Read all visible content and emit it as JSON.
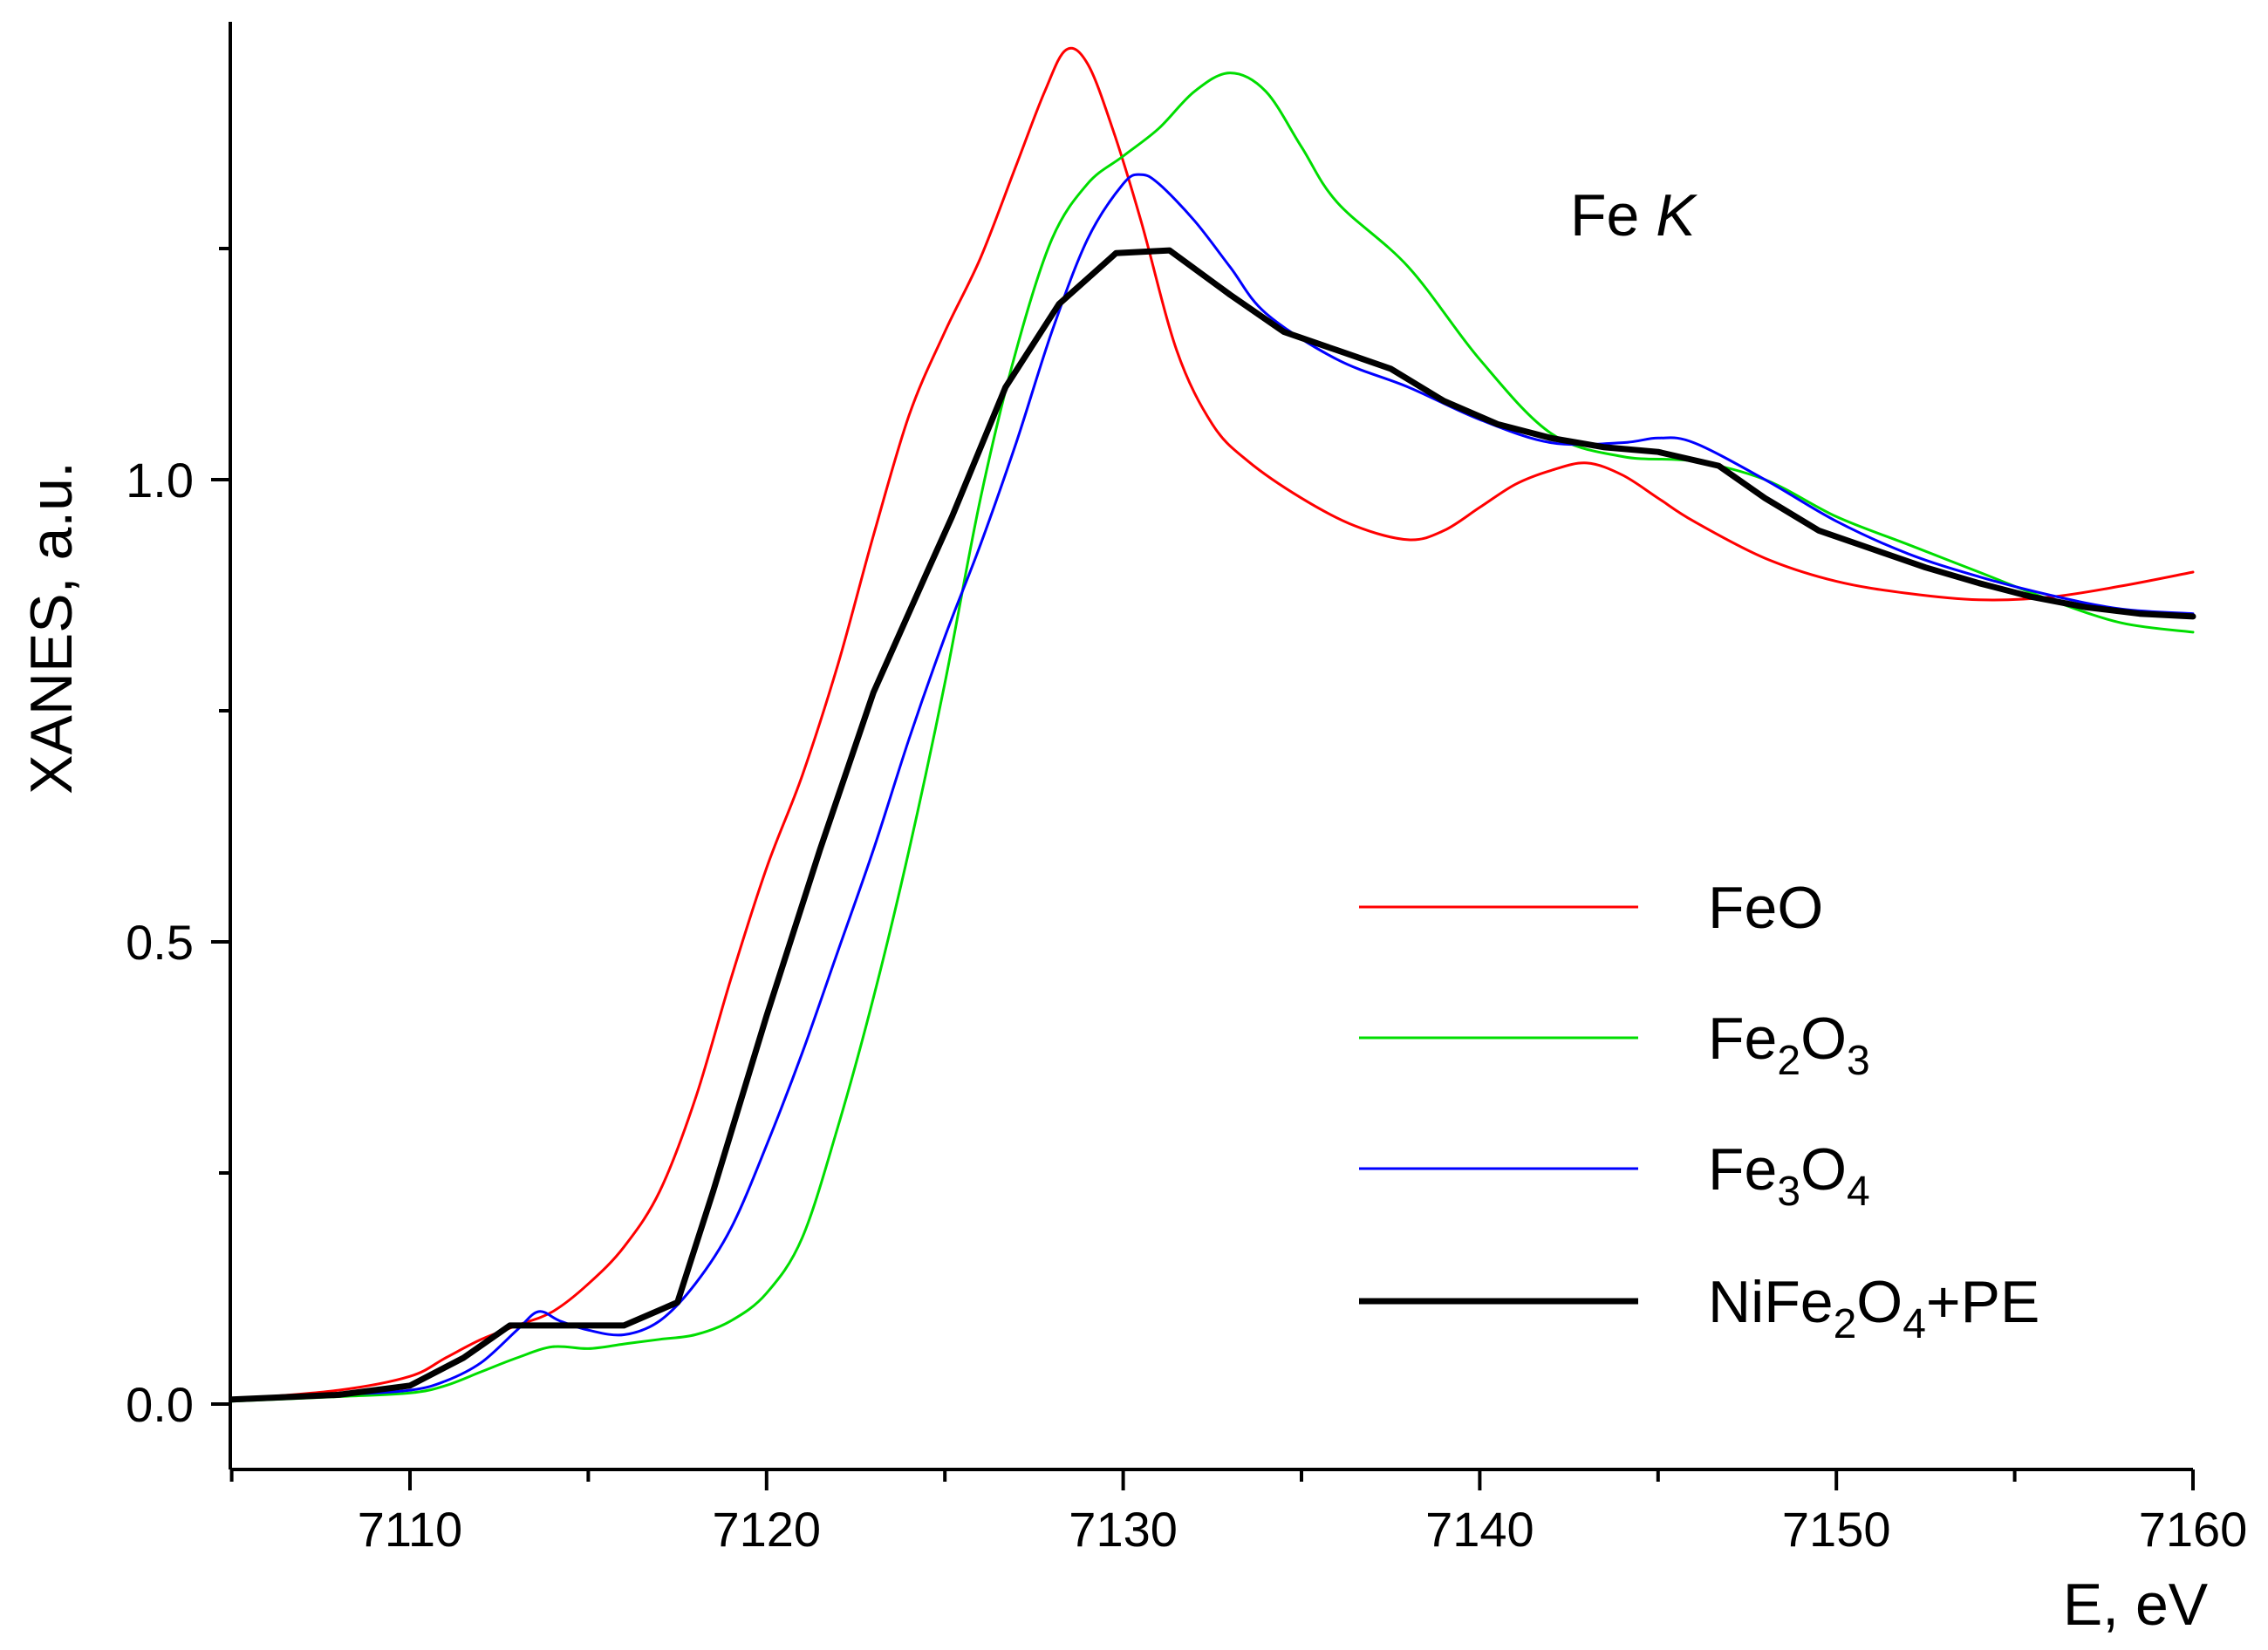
{
  "chart_data": {
    "type": "line",
    "title": "",
    "annotation": {
      "main": "Fe ",
      "italic": "K"
    },
    "xlabel": "E, eV",
    "ylabel": "XANES, a.u.",
    "xlim": [
      7105,
      7160
    ],
    "ylim": [
      -0.06,
      1.5
    ],
    "xticks": [
      7110,
      7120,
      7130,
      7140,
      7150,
      7160
    ],
    "xtick_labels": [
      "7110",
      "7120",
      "7130",
      "7140",
      "7150",
      "7160"
    ],
    "xminor": [
      7105,
      7115,
      7125,
      7135,
      7145,
      7155
    ],
    "yticks": [
      0.0,
      0.5,
      1.0
    ],
    "ytick_labels": [
      "0.0",
      "0.5",
      "1.0"
    ],
    "yminor": [
      0.25,
      0.75,
      1.25
    ],
    "grid": false,
    "legend_position": "center-right",
    "series": [
      {
        "name": "FeO",
        "legend": [
          {
            "t": "FeO"
          }
        ],
        "color": "#ff0000",
        "width": 3,
        "x": [
          7105,
          7108,
          7110,
          7111,
          7112,
          7113,
          7114,
          7115,
          7116,
          7117,
          7118,
          7119,
          7120,
          7121,
          7122,
          7123,
          7124,
          7125,
          7126,
          7127,
          7127.8,
          7128.4,
          7129,
          7129.7,
          7130.5,
          7131.5,
          7132.5,
          7133.5,
          7135,
          7136.5,
          7138,
          7139,
          7140,
          7141,
          7142,
          7143,
          7144,
          7145,
          7146,
          7148,
          7150,
          7152,
          7154,
          7156,
          7158,
          7160
        ],
        "y": [
          0.005,
          0.015,
          0.03,
          0.05,
          0.07,
          0.085,
          0.1,
          0.13,
          0.17,
          0.23,
          0.33,
          0.46,
          0.58,
          0.68,
          0.8,
          0.94,
          1.07,
          1.16,
          1.24,
          1.34,
          1.42,
          1.465,
          1.45,
          1.38,
          1.28,
          1.14,
          1.06,
          1.02,
          0.98,
          0.95,
          0.935,
          0.945,
          0.97,
          0.995,
          1.01,
          1.018,
          1.005,
          0.98,
          0.955,
          0.915,
          0.89,
          0.877,
          0.87,
          0.873,
          0.885,
          0.9
        ]
      },
      {
        "name": "Fe2O3",
        "legend": [
          {
            "t": "Fe"
          },
          {
            "t": "2",
            "sub": true
          },
          {
            "t": "O"
          },
          {
            "t": "3",
            "sub": true
          }
        ],
        "color": "#00dd00",
        "width": 3,
        "x": [
          7105,
          7108,
          7110,
          7111,
          7112,
          7113,
          7114,
          7115,
          7116,
          7117,
          7118,
          7119,
          7120,
          7121,
          7122,
          7123,
          7124,
          7125,
          7126,
          7127,
          7128,
          7129,
          7130,
          7131,
          7132,
          7133,
          7134,
          7135,
          7136,
          7138,
          7140,
          7142,
          7144,
          7146,
          7148,
          7150,
          7152,
          7154,
          7156,
          7158,
          7160
        ],
        "y": [
          0.003,
          0.008,
          0.012,
          0.02,
          0.035,
          0.05,
          0.062,
          0.06,
          0.065,
          0.07,
          0.075,
          0.09,
          0.12,
          0.18,
          0.3,
          0.44,
          0.6,
          0.78,
          0.98,
          1.14,
          1.26,
          1.32,
          1.35,
          1.38,
          1.42,
          1.44,
          1.42,
          1.36,
          1.3,
          1.23,
          1.13,
          1.05,
          1.025,
          1.02,
          1.0,
          0.96,
          0.93,
          0.9,
          0.87,
          0.845,
          0.835
        ]
      },
      {
        "name": "Fe3O4",
        "legend": [
          {
            "t": "Fe"
          },
          {
            "t": "3",
            "sub": true
          },
          {
            "t": "O"
          },
          {
            "t": "4",
            "sub": true
          }
        ],
        "color": "#0000ff",
        "width": 3,
        "x": [
          7105,
          7108,
          7110,
          7111,
          7112,
          7113,
          7113.6,
          7114.2,
          7115,
          7116,
          7117,
          7118,
          7119,
          7120,
          7121,
          7122,
          7123,
          7124,
          7125,
          7126,
          7127,
          7128,
          7129,
          7130,
          7130.5,
          7131,
          7132,
          7133,
          7134,
          7136,
          7138,
          7140,
          7142,
          7144,
          7145,
          7146,
          7148,
          7150,
          7152,
          7154,
          7156,
          7158,
          7160
        ],
        "y": [
          0.005,
          0.01,
          0.015,
          0.025,
          0.045,
          0.08,
          0.1,
          0.09,
          0.08,
          0.075,
          0.09,
          0.13,
          0.19,
          0.28,
          0.38,
          0.49,
          0.6,
          0.72,
          0.83,
          0.93,
          1.04,
          1.16,
          1.26,
          1.32,
          1.33,
          1.32,
          1.28,
          1.23,
          1.18,
          1.13,
          1.1,
          1.065,
          1.04,
          1.04,
          1.045,
          1.04,
          1.0,
          0.955,
          0.92,
          0.895,
          0.875,
          0.86,
          0.855
        ]
      },
      {
        "name": "NiFe2O4+PE",
        "legend": [
          {
            "t": "NiFe"
          },
          {
            "t": "2",
            "sub": true
          },
          {
            "t": "O"
          },
          {
            "t": "4",
            "sub": true
          },
          {
            "t": "+PE"
          }
        ],
        "color": "#000000",
        "width": 7,
        "x": [
          7105,
          7108,
          7110,
          7111.5,
          7112.8,
          7114,
          7115,
          7116,
          7117.5,
          7118.5,
          7120,
          7121.5,
          7123,
          7124.5,
          7125.2,
          7126.7,
          7128.2,
          7129.8,
          7131.3,
          7133,
          7134.5,
          7136,
          7137.5,
          7139,
          7140.5,
          7142,
          7143.5,
          7145,
          7146.7,
          7148,
          7149.5,
          7151,
          7152.5,
          7154,
          7155.5,
          7157,
          7158.5,
          7160
        ],
        "y": [
          0.005,
          0.01,
          0.02,
          0.05,
          0.085,
          0.085,
          0.085,
          0.085,
          0.11,
          0.23,
          0.42,
          0.6,
          0.77,
          0.9,
          0.96,
          1.1,
          1.19,
          1.245,
          1.248,
          1.2,
          1.16,
          1.14,
          1.12,
          1.085,
          1.06,
          1.045,
          1.035,
          1.03,
          1.015,
          0.98,
          0.945,
          0.925,
          0.905,
          0.888,
          0.873,
          0.862,
          0.855,
          0.852
        ]
      }
    ]
  }
}
